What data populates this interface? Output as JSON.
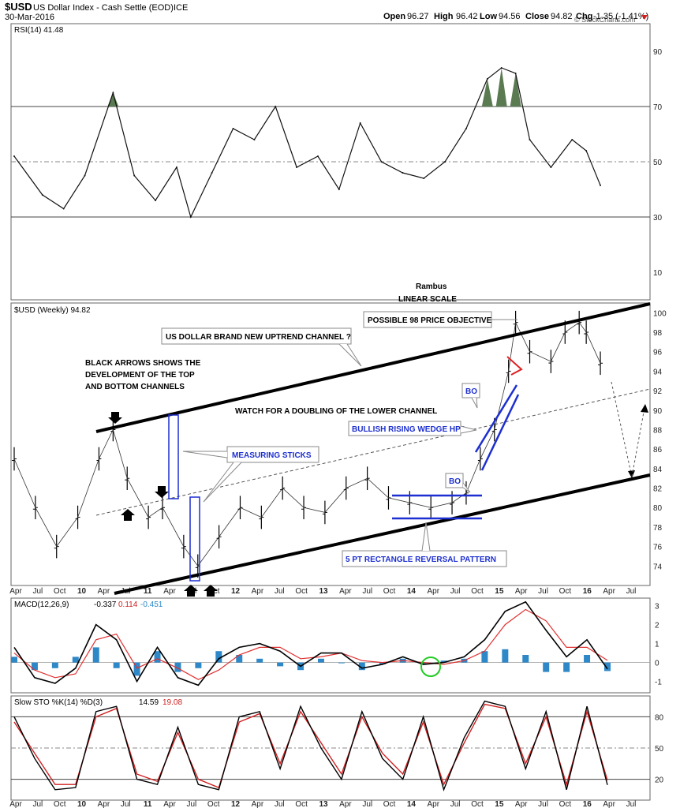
{
  "header": {
    "symbol": "$USD",
    "name": "US Dollar Index - Cash Settle (EOD)",
    "exchange": "ICE",
    "date": "30-Mar-2016",
    "watermark": "© StockCharts.com",
    "open_label": "Open",
    "open": "96.27",
    "high_label": "High",
    "high": "96.42",
    "low_label": "Low",
    "low": "94.56",
    "close_label": "Close",
    "close": "94.82",
    "chg_label": "Chg",
    "chg": "-1.35 (-1.41%)"
  },
  "colors": {
    "rsi_fill": "#5a7a52",
    "macd_line": "#000000",
    "signal_line": "#e03030",
    "histogram": "#2e88c8",
    "blue_annotation": "#1d2fd0",
    "red_annotation": "#e02020",
    "green_circle": "#22cc22"
  },
  "annotations": {
    "rambus": "Rambus",
    "linear_scale": "LINEAR SCALE",
    "possible_98": "POSSIBLE 98 PRICE OBJECTIVE",
    "uptrend_channel": "US DOLLAR BRAND NEW UPTREND CHANNEL ?",
    "black_arrows_1": "BLACK ARROWS SHOWS THE",
    "black_arrows_2": "DEVELOPMENT OF THE TOP",
    "black_arrows_3": "AND BOTTOM CHANNELS",
    "watch_doubling": "WATCH FOR A DOUBLING OF THE LOWER CHANNEL",
    "measuring_sticks": "MEASURING STICKS",
    "wedge": "BULLISH RISING WEDGE HP?",
    "bo_1": "BO",
    "bo_2": "BO",
    "rectangle": "5 PT RECTANGLE REVERSAL PATTERN"
  },
  "chart_data": [
    {
      "type": "line",
      "panel": "rsi",
      "legend": "RSI(14) 41.48",
      "yticks": [
        10,
        30,
        50,
        70,
        90
      ],
      "ylim": [
        0,
        100
      ],
      "reference_lines": [
        30,
        50,
        70
      ],
      "overbought_fill_above": 70,
      "x": [
        "2009-04",
        "2009-08",
        "2009-11",
        "2010-02",
        "2010-06",
        "2010-09",
        "2010-12",
        "2011-03",
        "2011-05",
        "2011-08",
        "2011-11",
        "2012-02",
        "2012-05",
        "2012-08",
        "2012-11",
        "2013-02",
        "2013-05",
        "2013-08",
        "2013-11",
        "2014-02",
        "2014-05",
        "2014-08",
        "2014-11",
        "2015-01",
        "2015-03",
        "2015-05",
        "2015-08",
        "2015-11",
        "2016-01",
        "2016-03"
      ],
      "values": [
        52,
        38,
        33,
        45,
        75,
        45,
        36,
        48,
        30,
        46,
        62,
        58,
        70,
        48,
        52,
        40,
        64,
        50,
        46,
        44,
        50,
        62,
        80,
        84,
        82,
        58,
        48,
        58,
        54,
        41.48
      ]
    },
    {
      "type": "bar",
      "panel": "price",
      "legend": "$USD (Weekly) 94.82",
      "ylim": [
        72,
        101
      ],
      "yticks": [
        74,
        76,
        78,
        80,
        82,
        84,
        86,
        88,
        90,
        92,
        94,
        96,
        98,
        100
      ],
      "x_tick_labels": [
        "Apr",
        "Jul",
        "Oct",
        "10",
        "Apr",
        "Jul",
        "11",
        "Apr",
        "Jul",
        "Oct",
        "12",
        "Apr",
        "Jul",
        "Oct",
        "13",
        "Apr",
        "Jul",
        "Oct",
        "14",
        "Apr",
        "Jul",
        "Oct",
        "15",
        "Apr",
        "Jul",
        "Oct",
        "16",
        "Apr",
        "Jul"
      ],
      "x": [
        "2009-04",
        "2009-07",
        "2009-10",
        "2010-01",
        "2010-04",
        "2010-06",
        "2010-08",
        "2010-11",
        "2011-01",
        "2011-04",
        "2011-06",
        "2011-09",
        "2011-12",
        "2012-03",
        "2012-06",
        "2012-09",
        "2012-12",
        "2013-03",
        "2013-06",
        "2013-09",
        "2013-12",
        "2014-03",
        "2014-06",
        "2014-08",
        "2014-10",
        "2014-12",
        "2015-02",
        "2015-03",
        "2015-05",
        "2015-08",
        "2015-10",
        "2015-12",
        "2016-01",
        "2016-03"
      ],
      "values": [
        85,
        80,
        76,
        79,
        85,
        88,
        83,
        79,
        80,
        76,
        74,
        77,
        80,
        79,
        82,
        80,
        79.5,
        82,
        83,
        81,
        80.5,
        80,
        80.5,
        81.5,
        85,
        88,
        94,
        99,
        96,
        95,
        98,
        99,
        98,
        94.82
      ]
    },
    {
      "type": "line",
      "panel": "macd",
      "legend": "MACD(12,26,9)",
      "legend_values": [
        "-0.337",
        "0.114",
        "-0.451"
      ],
      "yticks": [
        -1,
        0,
        1,
        2,
        3
      ],
      "ylim": [
        -1.6,
        3.4
      ],
      "series": [
        {
          "name": "MACD(12,26,9)",
          "values": [
            0.8,
            -0.8,
            -1.1,
            -0.3,
            2.0,
            1.2,
            -1.0,
            0.8,
            -0.8,
            -1.2,
            0.2,
            0.8,
            1.0,
            0.6,
            -0.2,
            0.5,
            0.5,
            -0.3,
            -0.1,
            0.3,
            -0.1,
            0.0,
            0.3,
            1.2,
            2.7,
            3.2,
            1.7,
            0.3,
            1.2,
            -0.337
          ]
        },
        {
          "name": "signal",
          "values": [
            0.5,
            -0.4,
            -0.8,
            -0.6,
            1.2,
            1.5,
            -0.3,
            0.2,
            -0.3,
            -0.9,
            -0.4,
            0.4,
            0.8,
            0.8,
            0.2,
            0.3,
            0.5,
            0.1,
            0.0,
            0.1,
            0.0,
            -0.1,
            0.1,
            0.6,
            2.0,
            2.8,
            2.2,
            0.8,
            0.8,
            0.114
          ]
        },
        {
          "name": "histogram",
          "values": [
            0.3,
            -0.4,
            -0.3,
            0.3,
            0.8,
            -0.3,
            -0.7,
            0.6,
            -0.5,
            -0.3,
            0.6,
            0.4,
            0.2,
            -0.2,
            -0.4,
            0.2,
            0.0,
            -0.4,
            -0.1,
            0.2,
            -0.1,
            0.1,
            0.2,
            0.6,
            0.7,
            0.4,
            -0.5,
            -0.5,
            0.4,
            -0.451
          ]
        }
      ]
    },
    {
      "type": "line",
      "panel": "stochastic",
      "legend": "Slow STO %K(14) %D(3)",
      "legend_values": [
        "14.59",
        "19.08"
      ],
      "yticks": [
        20,
        50,
        80
      ],
      "ylim": [
        0,
        100
      ],
      "reference_lines": [
        20,
        50,
        80
      ],
      "series": [
        {
          "name": "%K(14)",
          "values": [
            80,
            40,
            10,
            12,
            85,
            90,
            20,
            15,
            70,
            15,
            10,
            80,
            85,
            30,
            90,
            50,
            20,
            85,
            40,
            20,
            80,
            10,
            60,
            95,
            90,
            30,
            85,
            10,
            90,
            14.59
          ]
        },
        {
          "name": "%D(3)",
          "values": [
            75,
            45,
            15,
            15,
            80,
            88,
            25,
            18,
            65,
            20,
            12,
            75,
            83,
            35,
            85,
            55,
            25,
            80,
            45,
            25,
            75,
            15,
            55,
            92,
            88,
            35,
            80,
            15,
            85,
            19.08
          ]
        }
      ]
    }
  ]
}
